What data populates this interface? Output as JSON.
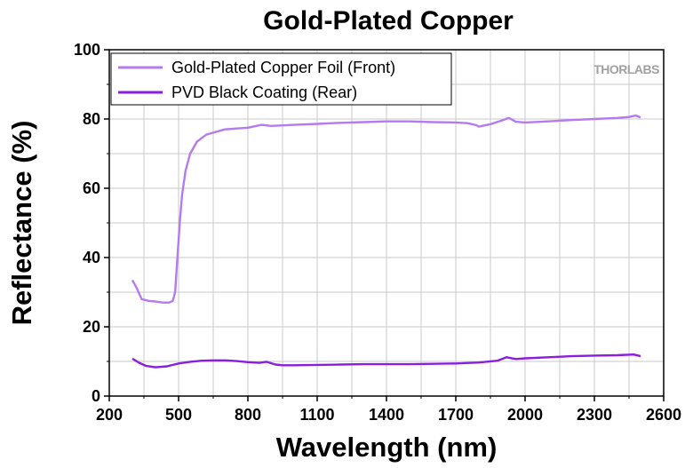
{
  "chart_data": {
    "type": "line",
    "title": "Gold-Plated Copper",
    "xlabel": "Wavelength (nm)",
    "ylabel": "Reflectance (%)",
    "xlim": [
      200,
      2600
    ],
    "ylim": [
      0,
      100
    ],
    "xticks": [
      200,
      500,
      800,
      1100,
      1400,
      1700,
      2000,
      2300,
      2600
    ],
    "yticks": [
      0,
      20,
      40,
      60,
      80,
      100
    ],
    "grid": true,
    "legend_position": "top-left",
    "logo": "THORLABS",
    "series": [
      {
        "name": "Gold-Plated Copper Foil (Front)",
        "color": "#b57bee",
        "points": [
          [
            300,
            33.5
          ],
          [
            320,
            31
          ],
          [
            340,
            28
          ],
          [
            370,
            27.5
          ],
          [
            400,
            27.3
          ],
          [
            430,
            27
          ],
          [
            460,
            27
          ],
          [
            475,
            27.5
          ],
          [
            485,
            30
          ],
          [
            495,
            40
          ],
          [
            505,
            50
          ],
          [
            515,
            58
          ],
          [
            530,
            65
          ],
          [
            550,
            70
          ],
          [
            580,
            73.5
          ],
          [
            620,
            75.5
          ],
          [
            700,
            77
          ],
          [
            800,
            77.5
          ],
          [
            860,
            78.3
          ],
          [
            900,
            78
          ],
          [
            1000,
            78.3
          ],
          [
            1100,
            78.6
          ],
          [
            1200,
            78.9
          ],
          [
            1300,
            79.1
          ],
          [
            1400,
            79.3
          ],
          [
            1500,
            79.3
          ],
          [
            1600,
            79.1
          ],
          [
            1700,
            79.0
          ],
          [
            1750,
            78.8
          ],
          [
            1790,
            78.2
          ],
          [
            1800,
            77.8
          ],
          [
            1850,
            78.5
          ],
          [
            1900,
            79.6
          ],
          [
            1930,
            80.3
          ],
          [
            1960,
            79.2
          ],
          [
            2000,
            79.0
          ],
          [
            2100,
            79.3
          ],
          [
            2200,
            79.7
          ],
          [
            2300,
            80.0
          ],
          [
            2400,
            80.3
          ],
          [
            2450,
            80.6
          ],
          [
            2480,
            81.0
          ],
          [
            2500,
            80.4
          ]
        ]
      },
      {
        "name": "PVD Black Coating (Rear)",
        "color": "#8a1ee0",
        "points": [
          [
            300,
            10.8
          ],
          [
            330,
            9.6
          ],
          [
            360,
            8.7
          ],
          [
            400,
            8.3
          ],
          [
            450,
            8.6
          ],
          [
            500,
            9.4
          ],
          [
            550,
            9.9
          ],
          [
            600,
            10.2
          ],
          [
            650,
            10.3
          ],
          [
            700,
            10.3
          ],
          [
            750,
            10.1
          ],
          [
            800,
            9.8
          ],
          [
            850,
            9.6
          ],
          [
            880,
            9.9
          ],
          [
            920,
            9.1
          ],
          [
            950,
            8.9
          ],
          [
            1000,
            8.9
          ],
          [
            1100,
            9.0
          ],
          [
            1200,
            9.1
          ],
          [
            1300,
            9.2
          ],
          [
            1400,
            9.2
          ],
          [
            1500,
            9.2
          ],
          [
            1600,
            9.3
          ],
          [
            1700,
            9.4
          ],
          [
            1800,
            9.7
          ],
          [
            1880,
            10.2
          ],
          [
            1920,
            11.2
          ],
          [
            1960,
            10.7
          ],
          [
            2000,
            10.9
          ],
          [
            2100,
            11.2
          ],
          [
            2200,
            11.5
          ],
          [
            2300,
            11.7
          ],
          [
            2400,
            11.8
          ],
          [
            2470,
            12.0
          ],
          [
            2500,
            11.5
          ]
        ]
      }
    ]
  }
}
